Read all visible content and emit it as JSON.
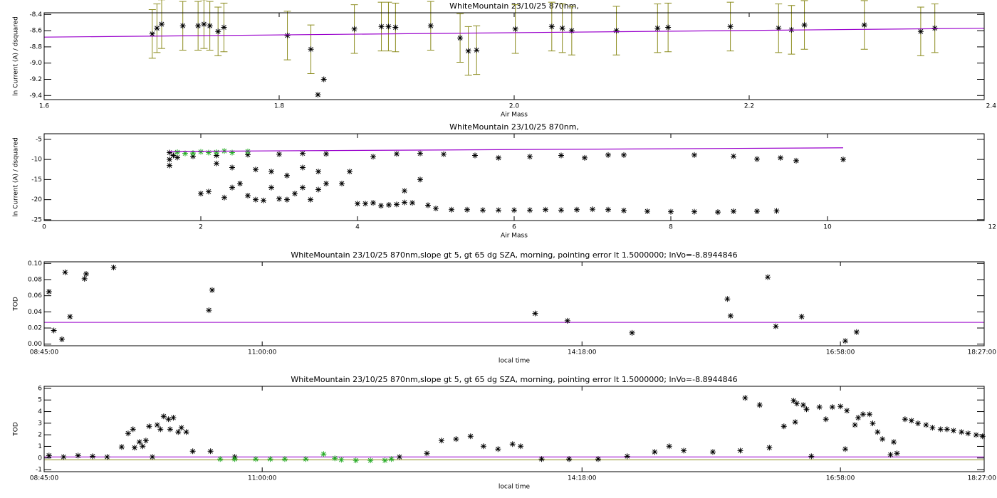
{
  "chart_data": [
    {
      "type": "scatter",
      "title": "WhiteMountain 23/10/25 870nm,",
      "x_label": "Air Mass",
      "y_label": "ln Current (A) / dsquared",
      "xlim": [
        1.6,
        2.4
      ],
      "xticks": [
        1.6,
        1.8,
        {
          "value": 2,
          "label": "2.0"
        },
        2.2,
        2.4
      ],
      "ylim": [
        -9.45,
        -8.38
      ],
      "yticks": [
        -8.4,
        -8.6,
        -8.8,
        {
          "value": -9,
          "label": "-9.0"
        },
        -9.2,
        -9.4
      ],
      "series": [
        {
          "style": "asterisk",
          "color": "#000000",
          "error_color": "#8c8c1e",
          "x": [
            1.692,
            1.696,
            1.7,
            1.718,
            1.731,
            1.736,
            1.741,
            1.748,
            1.753,
            1.807,
            1.827,
            1.833,
            1.838,
            1.864,
            1.887,
            1.893,
            1.899,
            1.929,
            1.954,
            1.961,
            1.968,
            2.001,
            2.032,
            2.041,
            2.049,
            2.087,
            2.122,
            2.131,
            2.184,
            2.225,
            2.236,
            2.247,
            2.298,
            2.346,
            2.358
          ],
          "values": [
            -8.64,
            -8.57,
            -8.52,
            -8.54,
            -8.54,
            -8.52,
            -8.54,
            -8.61,
            -8.56,
            -8.66,
            -8.83,
            -9.39,
            -9.2,
            -8.58,
            -8.55,
            -8.55,
            -8.56,
            -8.54,
            -8.69,
            -8.85,
            -8.84,
            -8.58,
            -8.55,
            -8.57,
            -8.6,
            -8.6,
            -8.57,
            -8.56,
            -8.55,
            -8.57,
            -8.59,
            -8.53,
            -8.53,
            -8.61,
            -8.57
          ],
          "errors": [
            0.3,
            0.3,
            0.3,
            0.3,
            0.3,
            0.3,
            0.3,
            0.3,
            0.3,
            0.3,
            0.3,
            null,
            null,
            0.3,
            0.3,
            0.3,
            0.3,
            0.3,
            0.3,
            0.3,
            0.3,
            0.3,
            0.3,
            0.3,
            0.3,
            0.3,
            0.3,
            0.3,
            0.3,
            0.3,
            0.3,
            0.3,
            0.3,
            0.3,
            0.3
          ]
        },
        {
          "style": "line",
          "color": "#9900cc",
          "x": [
            1.6,
            2.4
          ],
          "values": [
            -8.68,
            -8.57
          ]
        }
      ]
    },
    {
      "type": "scatter",
      "title": "WhiteMountain 23/10/25 870nm,",
      "x_label": "Air Mass",
      "y_label": "ln Current (A) / dsquared",
      "xlim": [
        0,
        12
      ],
      "xticks": [
        0,
        2,
        4,
        6,
        8,
        10,
        12
      ],
      "ylim": [
        -25.2,
        -3.6
      ],
      "yticks": [
        -5,
        -10,
        -15,
        -20,
        -25
      ],
      "series": [
        {
          "style": "asterisk",
          "color": "#000000",
          "x": [
            4.0,
            4.1,
            4.2,
            4.3,
            4.4,
            4.5,
            4.6,
            4.7,
            4.9,
            5.0,
            5.2,
            5.4,
            5.6,
            5.8,
            6.0,
            6.2,
            6.4,
            6.6,
            6.8,
            7.0,
            7.2,
            7.4,
            7.7,
            8.0,
            8.3,
            8.6,
            8.8,
            9.1,
            9.35,
            1.6,
            1.7,
            1.9,
            2.2,
            2.6,
            3.0,
            3.3,
            3.6,
            4.2,
            4.5,
            4.8,
            5.1,
            5.5,
            5.8,
            6.2,
            6.6,
            6.9,
            7.2,
            7.4,
            8.3,
            8.8,
            9.1,
            9.4,
            9.6,
            10.2,
            2.0,
            2.1,
            2.3,
            2.4,
            2.5,
            2.6,
            2.7,
            2.8,
            2.9,
            3.0,
            3.1,
            3.2,
            3.3,
            3.4,
            3.5,
            3.6,
            3.8,
            2.2,
            2.4,
            2.7,
            2.9,
            3.1,
            3.3,
            3.5,
            3.9,
            4.8,
            4.6,
            1.6,
            1.6,
            1.65
          ],
          "values": [
            -21,
            -21,
            -20.8,
            -21.5,
            -21.3,
            -21.2,
            -20.7,
            -20.8,
            -21.4,
            -22.2,
            -22.5,
            -22.5,
            -22.6,
            -22.6,
            -22.6,
            -22.6,
            -22.5,
            -22.6,
            -22.5,
            -22.4,
            -22.5,
            -22.7,
            -22.9,
            -23,
            -23,
            -23.1,
            -22.9,
            -22.9,
            -22.8,
            -10,
            -9.5,
            -9.2,
            -9,
            -8.8,
            -8.7,
            -8.5,
            -8.6,
            -9.3,
            -8.6,
            -8.5,
            -8.7,
            -9,
            -9.6,
            -9.3,
            -9,
            -9.6,
            -8.9,
            -8.9,
            -8.9,
            -9.2,
            -9.9,
            -9.6,
            -10.3,
            -10,
            -18.5,
            -18,
            -19.5,
            -17,
            -16,
            -19,
            -20,
            -20.2,
            -17,
            -19.8,
            -20,
            -18.5,
            -17,
            -20,
            -17.5,
            -16,
            -16,
            -11,
            -12,
            -12.5,
            -13,
            -14,
            -12,
            -13,
            -13,
            -15,
            -17.8,
            -11.5,
            -8.3,
            -9
          ]
        },
        {
          "style": "asterisk",
          "color": "#22aa22",
          "x": [
            1.7,
            1.8,
            1.9,
            2.0,
            2.1,
            2.2,
            2.3,
            2.4,
            2.6
          ],
          "values": [
            -8.2,
            -8.5,
            -8.4,
            -8.1,
            -8.3,
            -8.2,
            -7.9,
            -8.3,
            -8.0
          ]
        },
        {
          "style": "line",
          "color": "#9900cc",
          "x": [
            1.6,
            10.2
          ],
          "values": [
            -8.0,
            -7.1
          ]
        }
      ]
    },
    {
      "type": "scatter",
      "title": "WhiteMountain 23/10/25 870nm,slope gt 5, gt 65 dg SZA, morning, pointing error lt 1.5000000; lnVo=-8.8944846",
      "x_label": "local time",
      "y_label": "TOD",
      "xlim": [
        "08:45:00",
        "18:27:00"
      ],
      "xticks": [
        "08:45:00",
        "11:00:00",
        "14:18:00",
        "16:58:00",
        "18:27:00"
      ],
      "ylim": [
        -0.002,
        0.102
      ],
      "yticks": [
        {
          "value": 0,
          "label": "0.00"
        },
        {
          "value": 0.02,
          "label": "0.02"
        },
        {
          "value": 0.04,
          "label": "0.04"
        },
        {
          "value": 0.06,
          "label": "0.06"
        },
        {
          "value": 0.08,
          "label": "0.08"
        },
        {
          "value": 0.1,
          "label": "0.10"
        }
      ],
      "hlines": [
        {
          "value": 0.027,
          "color": "#9900cc"
        }
      ],
      "series": [
        {
          "style": "asterisk",
          "color": "#000000",
          "x": [
            "08:48",
            "08:51",
            "08:56",
            "08:58",
            "09:01",
            "09:10",
            "09:11",
            "09:28",
            "10:27",
            "10:29",
            "13:49",
            "14:09",
            "14:49",
            "15:48",
            "15:50",
            "16:13",
            "16:18",
            "16:34",
            "17:01",
            "17:08"
          ],
          "values": [
            0.065,
            0.017,
            0.006,
            0.089,
            0.034,
            0.081,
            0.087,
            0.095,
            0.042,
            0.067,
            0.038,
            0.029,
            0.014,
            0.056,
            0.035,
            0.083,
            0.022,
            0.034,
            0.004,
            0.015
          ]
        }
      ]
    },
    {
      "type": "scatter",
      "title": "WhiteMountain 23/10/25 870nm,slope gt 5, gt 65 dg SZA, morning, pointing error lt 1.5000000; lnVo=-8.8944846",
      "x_label": "local time",
      "y_label": "TOD",
      "xlim": [
        "08:45:00",
        "18:27:00"
      ],
      "xticks": [
        "08:45:00",
        "11:00:00",
        "14:18:00",
        "16:58:00",
        "18:27:00"
      ],
      "ylim": [
        -1.18,
        6.18
      ],
      "yticks": [
        -1,
        0,
        1,
        2,
        3,
        4,
        5,
        6
      ],
      "hlines": [
        {
          "value": 0.09,
          "color": "#9900cc"
        },
        {
          "value": -0.15,
          "color": "#8c8c1e"
        }
      ],
      "series": [
        {
          "style": "asterisk",
          "color": "#000000",
          "x": [
            "08:48",
            "08:57",
            "09:06",
            "09:15",
            "09:24",
            "09:33",
            "09:37",
            "09:40",
            "09:41",
            "09:44",
            "09:46",
            "09:48",
            "09:50",
            "09:52",
            "09:55",
            "09:57",
            "09:59",
            "10:02",
            "10:03",
            "10:05",
            "10:08",
            "10:10",
            "10:13",
            "10:17",
            "10:28",
            "10:43",
            "12:25",
            "12:42",
            "12:51",
            "13:00",
            "13:09",
            "13:17",
            "13:26",
            "13:35",
            "13:40",
            "13:53",
            "14:10",
            "14:28",
            "14:46",
            "15:03",
            "15:12",
            "15:21",
            "15:39",
            "15:56",
            "15:59",
            "16:08",
            "16:14",
            "16:23",
            "16:29",
            "16:30",
            "16:31",
            "16:35",
            "16:37",
            "16:40",
            "16:45",
            "16:49",
            "16:53",
            "16:58",
            "17:01",
            "17:02",
            "17:07",
            "17:09",
            "17:12",
            "17:16",
            "17:18",
            "17:21",
            "17:24",
            "17:29",
            "17:31",
            "17:33",
            "17:38",
            "17:42",
            "17:46",
            "17:51",
            "17:55",
            "18:00",
            "18:04",
            "18:08",
            "18:13",
            "18:17",
            "18:22",
            "18:26"
          ],
          "values": [
            0.21,
            0.09,
            0.21,
            0.15,
            0.09,
            0.95,
            2.12,
            2.48,
            0.89,
            1.38,
            1.01,
            1.5,
            2.73,
            0.09,
            2.85,
            2.48,
            3.59,
            3.34,
            2.48,
            3.47,
            2.24,
            2.61,
            2.24,
            0.58,
            0.58,
            0.09,
            0.09,
            0.4,
            1.5,
            1.63,
            1.87,
            1.01,
            0.77,
            1.2,
            1.01,
            -0.09,
            -0.09,
            -0.09,
            0.15,
            0.52,
            1.01,
            0.64,
            0.52,
            0.64,
            5.18,
            4.57,
            0.89,
            2.73,
            4.94,
            3.1,
            4.69,
            4.57,
            4.2,
            0.15,
            4.39,
            3.34,
            4.39,
            4.45,
            0.77,
            4.08,
            2.85,
            3.47,
            3.77,
            3.77,
            2.98,
            2.24,
            1.63,
            0.28,
            1.38,
            0.4,
            3.34,
            3.22,
            2.98,
            2.85,
            2.61,
            2.48,
            2.48,
            2.36,
            2.24,
            2.12,
            1.99,
            1.87
          ]
        },
        {
          "style": "asterisk",
          "color": "#22aa22",
          "x": [
            "10:34",
            "10:43",
            "10:56",
            "11:05",
            "11:14",
            "11:27",
            "11:38",
            "11:45",
            "11:49",
            "11:58",
            "12:07",
            "12:16",
            "12:20"
          ],
          "values": [
            -0.09,
            -0.09,
            -0.09,
            -0.09,
            -0.09,
            -0.09,
            0.34,
            -0.03,
            -0.15,
            -0.21,
            -0.21,
            -0.21,
            -0.09
          ]
        }
      ]
    }
  ]
}
